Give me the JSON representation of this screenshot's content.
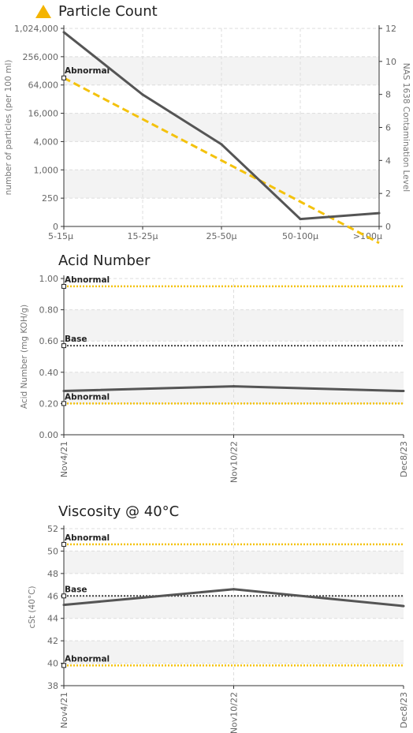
{
  "colors": {
    "series": "#555555",
    "abnormal": "#f4c20d",
    "base": "#444444",
    "band": "#f3f3f3",
    "warning": "#f4b400"
  },
  "chart_data": [
    {
      "type": "line",
      "title": "Particle Count",
      "status_icon": "warning-triangle-icon",
      "categories": [
        "5-15μ",
        "15-25μ",
        "25-50μ",
        "50-100μ",
        ">100μ"
      ],
      "ylabel": "number of particles (per 100 ml)",
      "y_scale": "log",
      "y_ticks": [
        "0",
        "250",
        "1,000",
        "4,000",
        "16,000",
        "64,000",
        "256,000",
        "1,024,000"
      ],
      "ylabel_right": "NAS 1638 Contamination Level",
      "y2_ticks": [
        "0",
        "2",
        "4",
        "6",
        "8",
        "10",
        "12"
      ],
      "y2lim": [
        0,
        12
      ],
      "series": [
        {
          "values": [
            850000,
            40000,
            3500,
            90,
            120
          ]
        }
      ],
      "reference": {
        "label": "Abnormal",
        "axis": "right",
        "values": [
          9.0,
          6.5,
          4.0,
          1.5,
          -1.0
        ]
      }
    },
    {
      "type": "line",
      "title": "Acid Number",
      "categories": [
        "Nov4/21",
        "Nov10/22",
        "Dec8/23"
      ],
      "ylabel": "Acid Number (mg KOH/g)",
      "ylim": [
        0,
        1
      ],
      "y_ticks": [
        "0.00",
        "0.20",
        "0.40",
        "0.60",
        "0.80",
        "1.00"
      ],
      "series": [
        {
          "values": [
            0.28,
            0.31,
            0.28
          ]
        }
      ],
      "references": [
        {
          "label": "Abnormal",
          "value": 0.95,
          "kind": "abnormal"
        },
        {
          "label": "Base",
          "value": 0.57,
          "kind": "base"
        },
        {
          "label": "Abnormal",
          "value": 0.2,
          "kind": "abnormal"
        }
      ]
    },
    {
      "type": "line",
      "title": "Viscosity @ 40°C",
      "categories": [
        "Nov4/21",
        "Nov10/22",
        "Dec8/23"
      ],
      "ylabel": "cSt (40°C)",
      "ylim": [
        38,
        52
      ],
      "y_ticks": [
        "38",
        "40",
        "42",
        "44",
        "46",
        "48",
        "50",
        "52"
      ],
      "series": [
        {
          "values": [
            45.2,
            46.6,
            45.1
          ]
        }
      ],
      "references": [
        {
          "label": "Abnormal",
          "value": 50.6,
          "kind": "abnormal"
        },
        {
          "label": "Base",
          "value": 46.0,
          "kind": "base"
        },
        {
          "label": "Abnormal",
          "value": 39.8,
          "kind": "abnormal"
        }
      ]
    }
  ]
}
